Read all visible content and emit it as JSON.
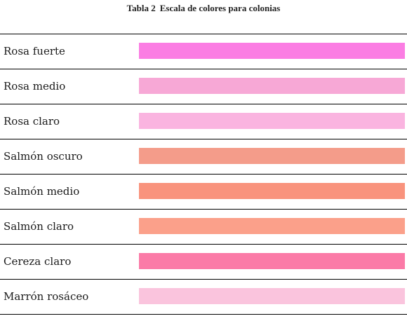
{
  "caption": {
    "number": "Tabla 2",
    "title": "Escala de colores para colonias"
  },
  "rows": [
    {
      "label": "Rosa fuerte",
      "color": "#fb7de3"
    },
    {
      "label": "Rosa medio",
      "color": "#f7a8d6"
    },
    {
      "label": "Rosa claro",
      "color": "#fab4e0"
    },
    {
      "label": "Salmón oscuro",
      "color": "#f49c8a"
    },
    {
      "label": "Salmón medio",
      "color": "#f9937d"
    },
    {
      "label": "Salmón claro",
      "color": "#fba08a"
    },
    {
      "label": "Cereza claro",
      "color": "#fb7aa7"
    },
    {
      "label": "Marrón rosáceo",
      "color": "#fac4dd"
    }
  ]
}
